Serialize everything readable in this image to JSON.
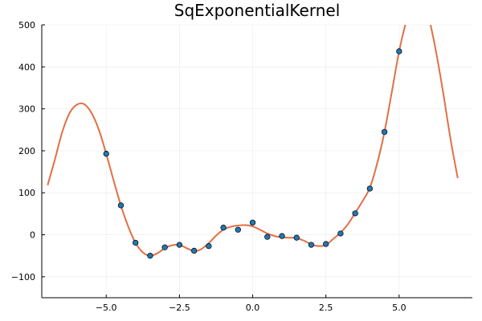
{
  "chart_data": {
    "type": "scatter",
    "title": "SqExponentialKernel",
    "xlabel": "",
    "ylabel": "",
    "xlim": [
      -7.2,
      7.5
    ],
    "ylim": [
      -150,
      500
    ],
    "grid": true,
    "legend": "none",
    "xticks": [
      -5.0,
      -2.5,
      0.0,
      2.5,
      5.0
    ],
    "xtick_labels": [
      "−5.0",
      "−2.5",
      "0.0",
      "2.5",
      "5.0"
    ],
    "yticks": [
      -100,
      0,
      100,
      200,
      300,
      400,
      500
    ],
    "ytick_labels": [
      "−100",
      "0",
      "100",
      "200",
      "300",
      "400",
      "500"
    ],
    "series": [
      {
        "type": "scatter",
        "color": "#1f77b4",
        "points": [
          [
            -5.0,
            193
          ],
          [
            -4.5,
            70
          ],
          [
            -4.0,
            -19
          ],
          [
            -3.5,
            -50
          ],
          [
            -3.0,
            -30
          ],
          [
            -2.5,
            -24
          ],
          [
            -2.0,
            -38
          ],
          [
            -1.5,
            -27
          ],
          [
            -1.0,
            17
          ],
          [
            -0.5,
            12
          ],
          [
            0.0,
            29
          ],
          [
            0.5,
            -5
          ],
          [
            1.0,
            -3
          ],
          [
            1.5,
            -7
          ],
          [
            2.0,
            -24
          ],
          [
            2.5,
            -22
          ],
          [
            3.0,
            3
          ],
          [
            3.5,
            51
          ],
          [
            4.0,
            110
          ],
          [
            4.5,
            245
          ],
          [
            5.0,
            437
          ]
        ]
      },
      {
        "type": "line",
        "color": "#e26f46",
        "points": [
          [
            -7.0,
            118
          ],
          [
            -6.75,
            180
          ],
          [
            -6.5,
            245
          ],
          [
            -6.25,
            290
          ],
          [
            -6.0,
            310
          ],
          [
            -5.75,
            311
          ],
          [
            -5.5,
            290
          ],
          [
            -5.25,
            250
          ],
          [
            -5.0,
            193
          ],
          [
            -4.75,
            130
          ],
          [
            -4.5,
            70
          ],
          [
            -4.25,
            20
          ],
          [
            -4.0,
            -19
          ],
          [
            -3.75,
            -42
          ],
          [
            -3.5,
            -50
          ],
          [
            -3.25,
            -44
          ],
          [
            -3.0,
            -32
          ],
          [
            -2.75,
            -25
          ],
          [
            -2.5,
            -24
          ],
          [
            -2.25,
            -32
          ],
          [
            -2.0,
            -39
          ],
          [
            -1.75,
            -34
          ],
          [
            -1.5,
            -20
          ],
          [
            -1.25,
            -2
          ],
          [
            -1.0,
            12
          ],
          [
            -0.75,
            19
          ],
          [
            -0.5,
            22
          ],
          [
            -0.25,
            23
          ],
          [
            0.0,
            20
          ],
          [
            0.25,
            12
          ],
          [
            0.5,
            3
          ],
          [
            0.75,
            -3
          ],
          [
            1.0,
            -6
          ],
          [
            1.25,
            -7
          ],
          [
            1.5,
            -8
          ],
          [
            1.75,
            -14
          ],
          [
            2.0,
            -23
          ],
          [
            2.25,
            -27
          ],
          [
            2.5,
            -24
          ],
          [
            2.75,
            -10
          ],
          [
            3.0,
            5
          ],
          [
            3.25,
            25
          ],
          [
            3.5,
            52
          ],
          [
            3.75,
            80
          ],
          [
            4.0,
            112
          ],
          [
            4.25,
            170
          ],
          [
            4.5,
            245
          ],
          [
            4.75,
            340
          ],
          [
            5.0,
            437
          ],
          [
            5.25,
            510
          ],
          [
            5.5,
            560
          ],
          [
            5.75,
            560
          ],
          [
            6.0,
            520
          ],
          [
            6.25,
            440
          ],
          [
            6.5,
            340
          ],
          [
            6.75,
            230
          ],
          [
            7.0,
            135
          ]
        ]
      }
    ]
  }
}
